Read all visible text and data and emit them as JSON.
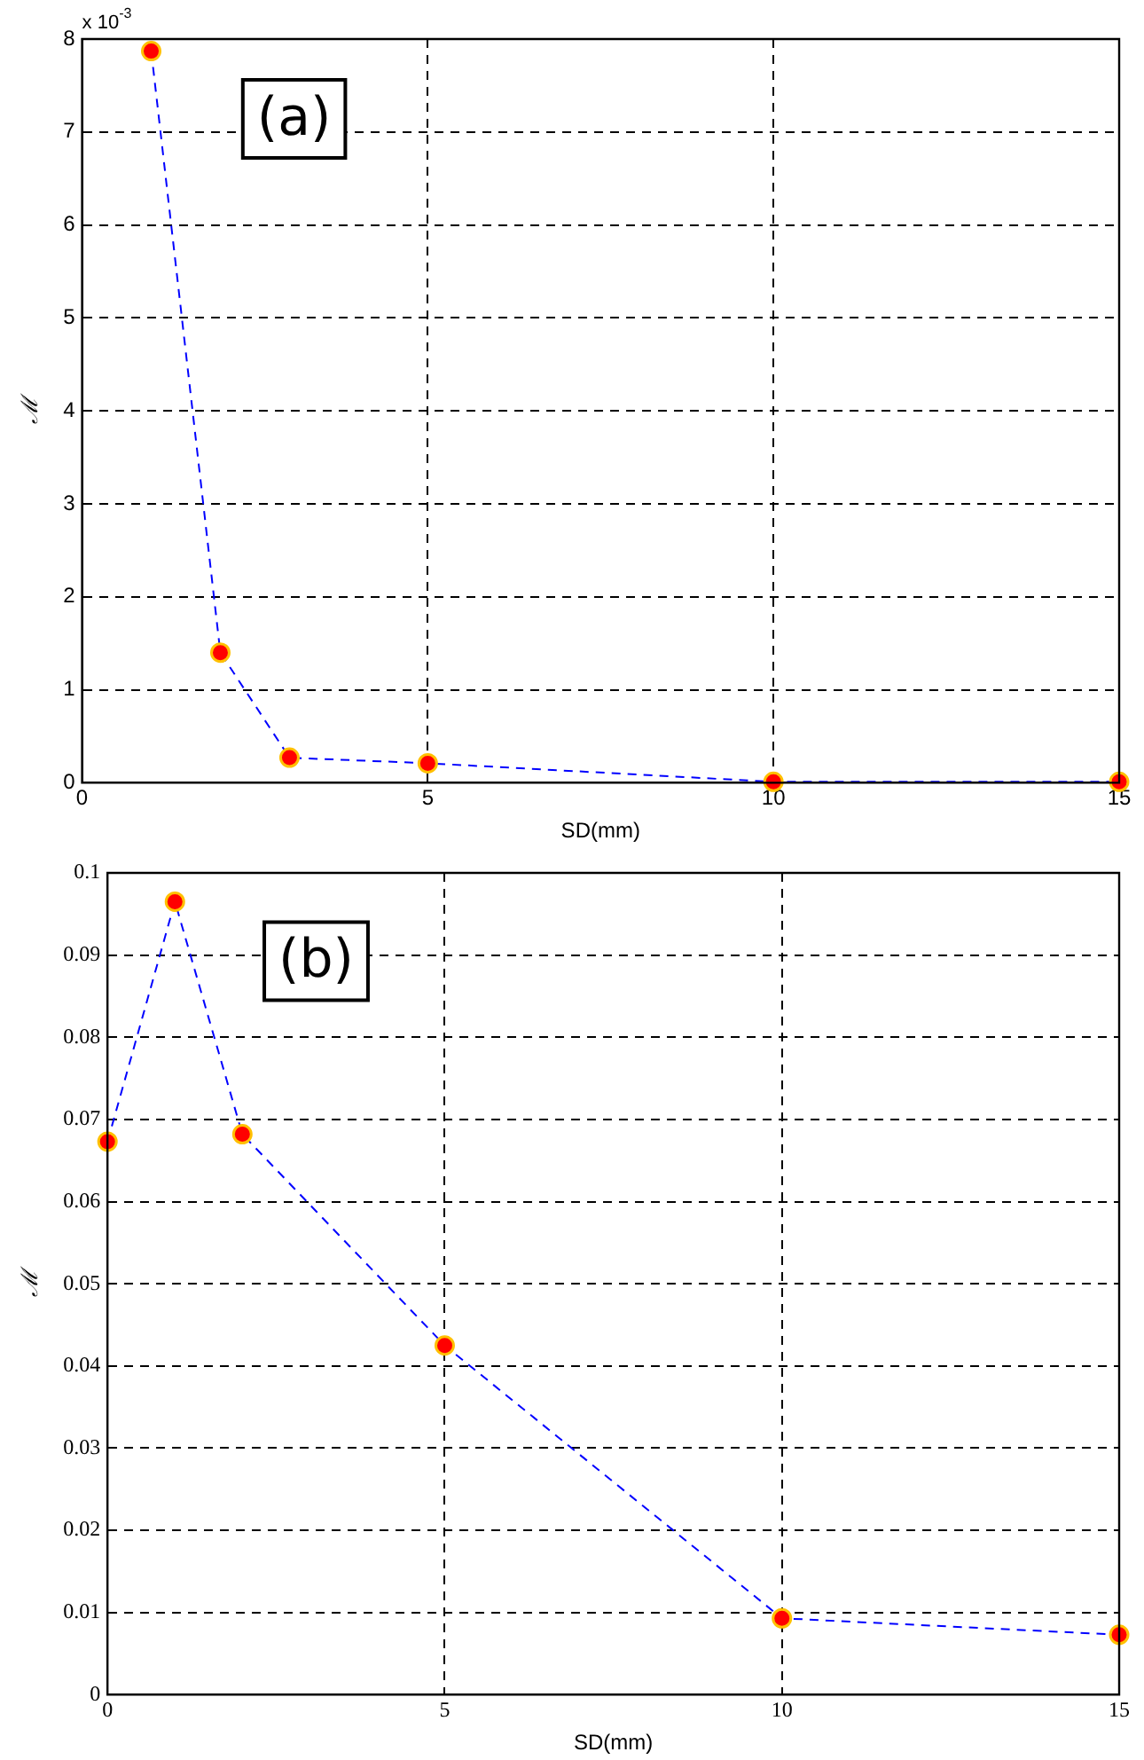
{
  "chart_data": [
    {
      "type": "line",
      "title": "(a)",
      "xlabel": "SD(mm)",
      "ylabel": "ℳ",
      "annotations": [
        "x 10$^{-3}$"
      ],
      "x": [
        1,
        2,
        3,
        5,
        10,
        15
      ],
      "series": [
        {
          "color": "#0000ff",
          "values": [
            7.87,
            1.4,
            0.27,
            0.21,
            0.01,
            0.01
          ]
        }
      ],
      "xlim": [
        0,
        15
      ],
      "xticks": [
        0,
        5,
        10,
        15
      ],
      "ylim": [
        0,
        8
      ],
      "yticks": [
        0,
        1,
        2,
        3,
        4,
        5,
        6,
        7,
        8
      ],
      "grid": true,
      "marker": "circle",
      "line_style": "dashed"
    },
    {
      "type": "line",
      "title": "(b)",
      "xlabel": "SD(mm)",
      "ylabel": "ℳ",
      "x": [
        0,
        1,
        2,
        5,
        10,
        15
      ],
      "series": [
        {
          "color": "#0000ff",
          "values": [
            0.0673,
            0.0965,
            0.0682,
            0.0425,
            0.0093,
            0.0073
          ]
        }
      ],
      "xlim": [
        0,
        15
      ],
      "xticks": [
        0,
        5,
        10,
        15
      ],
      "ylim": [
        0,
        0.1
      ],
      "yticks": [
        0,
        0.01,
        0.02,
        0.03,
        0.04,
        0.05,
        0.06,
        0.07,
        0.08,
        0.09,
        0.1
      ],
      "grid": true,
      "marker": "circle",
      "line_style": "dashed"
    }
  ]
}
